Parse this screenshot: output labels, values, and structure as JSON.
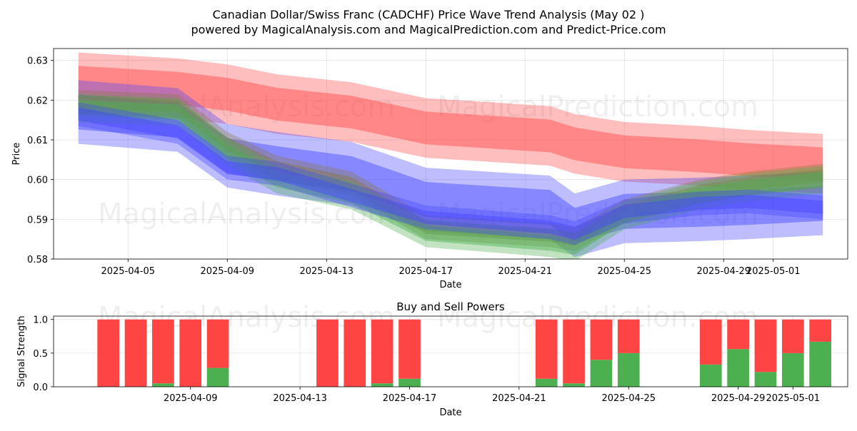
{
  "title_line1": "Canadian Dollar/Swiss Franc (CADCHF) Price Wave Trend Analysis (May 02 )",
  "title_line2": "powered by MagicalAnalysis.com and MagicalPrediction.com and Predict-Price.com",
  "watermarks": [
    "MagicalAnalysis.com",
    "MagicalPrediction.com"
  ],
  "colors": {
    "red": "#ff4444",
    "blue": "#4444ff",
    "green": "#4caf50",
    "olive": "#8a7a40"
  },
  "chart_data": [
    {
      "type": "area",
      "title": "",
      "xlabel": "Date",
      "ylabel": "Price",
      "ylim": [
        0.58,
        0.633
      ],
      "xlim": [
        "2025-04-02",
        "2025-05-04"
      ],
      "x_ticks": [
        "2025-04-05",
        "2025-04-09",
        "2025-04-13",
        "2025-04-17",
        "2025-04-21",
        "2025-04-25",
        "2025-04-29",
        "2025-05-01"
      ],
      "y_ticks": [
        "0.58",
        "0.59",
        "0.60",
        "0.61",
        "0.62",
        "0.63"
      ],
      "grid": true,
      "x": [
        "2025-04-03",
        "2025-04-07",
        "2025-04-09",
        "2025-04-11",
        "2025-04-14",
        "2025-04-17",
        "2025-04-22",
        "2025-04-23",
        "2025-04-25",
        "2025-04-28",
        "2025-04-30",
        "2025-05-03"
      ],
      "series": [
        {
          "color": "red",
          "values": [
            0.6245,
            0.623,
            0.6215,
            0.619,
            0.617,
            0.613,
            0.611,
            0.609,
            0.607,
            0.606,
            0.605,
            0.604
          ],
          "spread": 0.0075
        },
        {
          "color": "blue",
          "values": [
            0.617,
            0.615,
            0.606,
            0.604,
            0.6015,
            0.595,
            0.593,
            0.5885,
            0.592,
            0.5925,
            0.593,
            0.594
          ],
          "spread": 0.008
        },
        {
          "color": "olive",
          "values": [
            0.6195,
            0.6185,
            0.609,
            0.603,
            0.599,
            0.588,
            0.586,
            0.585,
            0.592,
            0.597,
            0.599,
            0.601
          ],
          "spread": 0.003
        },
        {
          "color": "green",
          "values": [
            0.618,
            0.617,
            0.607,
            0.6,
            0.596,
            0.5865,
            0.584,
            0.583,
            0.591,
            0.596,
            0.598,
            0.6
          ],
          "spread": 0.0035
        },
        {
          "color": "blue",
          "values": [
            0.6165,
            0.612,
            0.603,
            0.6015,
            0.596,
            0.5905,
            0.588,
            0.5865,
            0.592,
            0.594,
            0.5945,
            0.593
          ],
          "spread": 0.003
        }
      ]
    },
    {
      "type": "bar",
      "title": "Buy and Sell Powers",
      "xlabel": "Date",
      "ylabel": "Signal Strength",
      "ylim": [
        0,
        1.05
      ],
      "xlim": [
        "2025-04-04",
        "2025-05-03"
      ],
      "x_ticks": [
        "2025-04-09",
        "2025-04-13",
        "2025-04-17",
        "2025-04-21",
        "2025-04-25",
        "2025-04-29",
        "2025-05-01"
      ],
      "y_ticks": [
        "0.0",
        "0.5",
        "1.0"
      ],
      "grid": true,
      "categories": [
        "2025-04-06",
        "2025-04-07",
        "2025-04-08",
        "2025-04-09",
        "2025-04-10",
        "2025-04-14",
        "2025-04-15",
        "2025-04-16",
        "2025-04-17",
        "2025-04-22",
        "2025-04-23",
        "2025-04-24",
        "2025-04-25",
        "2025-04-28",
        "2025-04-29",
        "2025-04-30",
        "2025-05-01",
        "2025-05-02"
      ],
      "buy": [
        0.0,
        0.0,
        0.05,
        0.0,
        0.28,
        0.0,
        0.0,
        0.05,
        0.12,
        0.12,
        0.05,
        0.4,
        0.5,
        0.33,
        0.56,
        0.22,
        0.5,
        0.67
      ],
      "sell": [
        1.0,
        1.0,
        0.95,
        1.0,
        0.72,
        1.0,
        1.0,
        0.95,
        0.88,
        0.88,
        0.95,
        0.6,
        0.5,
        0.67,
        0.44,
        0.78,
        0.5,
        0.33
      ]
    }
  ]
}
